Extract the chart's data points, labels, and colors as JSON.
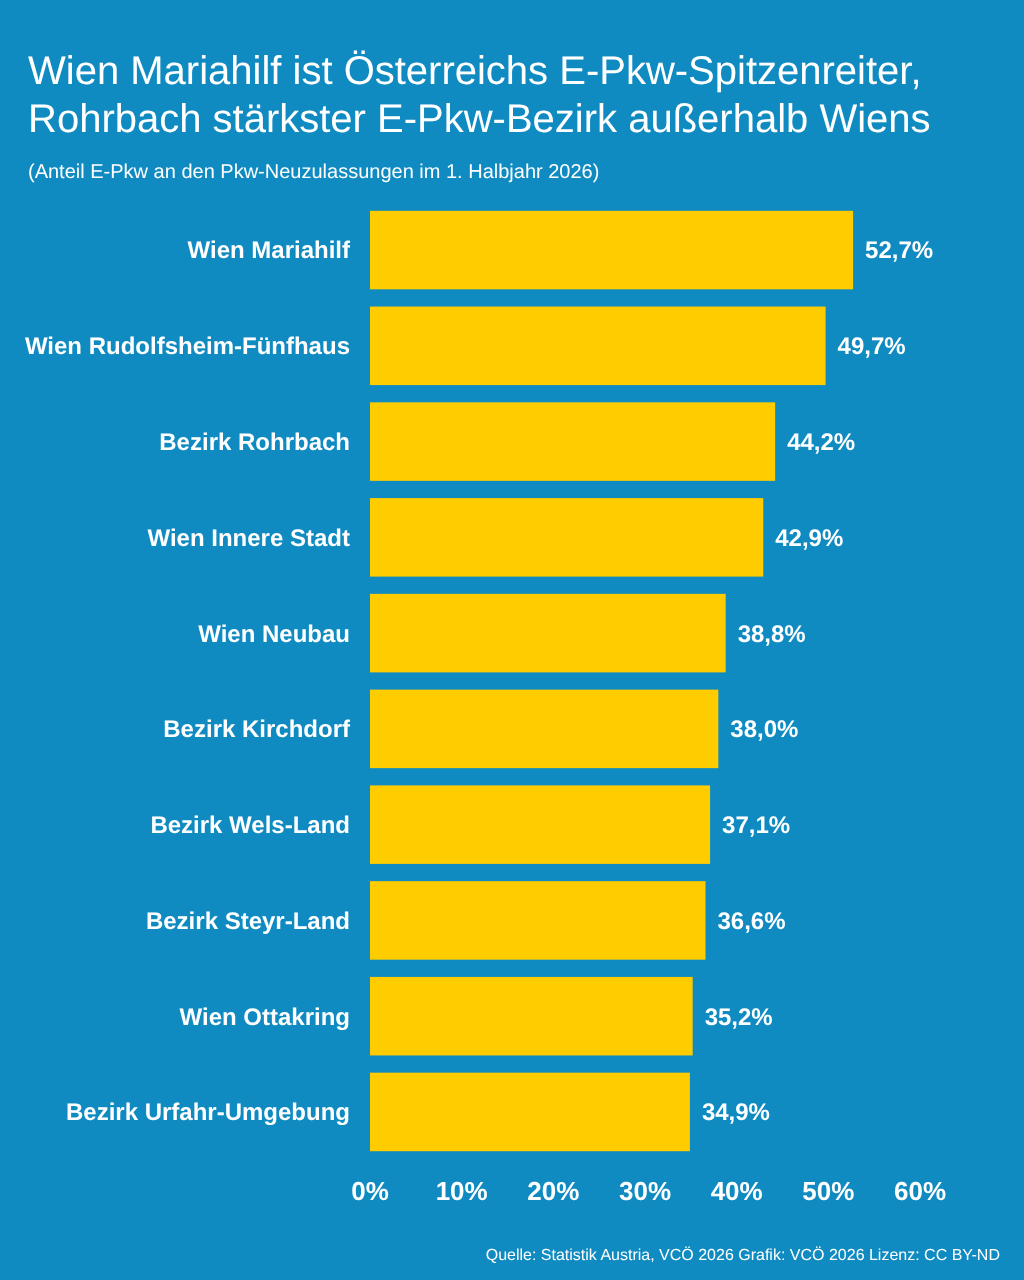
{
  "chart_data": {
    "type": "bar",
    "orientation": "horizontal",
    "title": "Wien Mariahilf ist Österreichs E-Pkw-Spitzenreiter,\nRohrbach stärkster E-Pkw-Bezirk außerhalb Wiens",
    "subtitle": "(Anteil E-Pkw an den Pkw-Neuzulassungen im 1. Halbjahr 2026)",
    "categories": [
      "Wien Mariahilf",
      "Wien Rudolfsheim-Fünfhaus",
      "Bezirk Rohrbach",
      "Wien Innere Stadt",
      "Wien Neubau",
      "Bezirk Kirchdorf",
      "Bezirk Wels-Land",
      "Bezirk Steyr-Land",
      "Wien Ottakring",
      "Bezirk Urfahr-Umgebung"
    ],
    "values": [
      52.7,
      49.7,
      44.2,
      42.9,
      38.8,
      38.0,
      37.1,
      36.6,
      35.2,
      34.9
    ],
    "value_labels": [
      "52,7%",
      "49,7%",
      "44,2%",
      "42,9%",
      "38,8%",
      "38,0%",
      "37,1%",
      "36,6%",
      "35,2%",
      "34,9%"
    ],
    "color": "#ffcc00",
    "xlim": [
      0,
      60
    ],
    "xticks": [
      {
        "value": 0,
        "label": "0%"
      },
      {
        "value": 10,
        "label": "10%"
      },
      {
        "value": 20,
        "label": "20%"
      },
      {
        "value": 30,
        "label": "30%"
      },
      {
        "value": 40,
        "label": "40%"
      },
      {
        "value": 50,
        "label": "50%"
      },
      {
        "value": 60,
        "label": "60%"
      }
    ],
    "annotations": [
      "Quelle: Statistik Austria, VCÖ 2026 Grafik: VCÖ 2026 Lizenz: CC BY-ND"
    ]
  }
}
